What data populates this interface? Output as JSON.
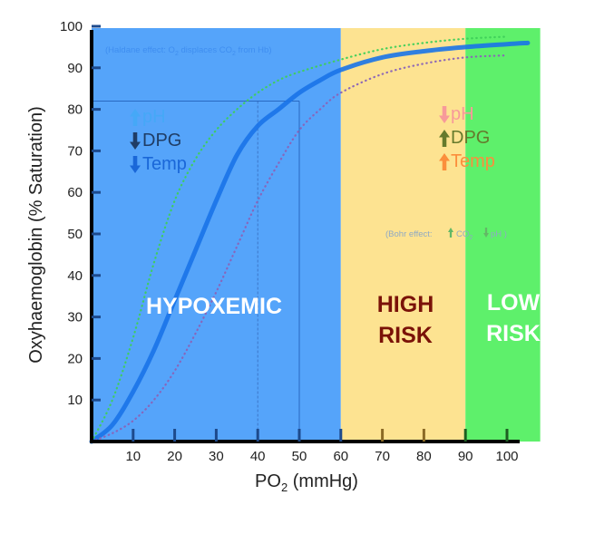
{
  "chart_data": {
    "type": "line",
    "xlabel": "PO",
    "xlabel_sub": "2",
    "xlabel_unit": "(mmHg)",
    "ylabel": "Oxyhaemoglobin (% Saturation)",
    "xlim": [
      0,
      108
    ],
    "ylim": [
      0,
      100
    ],
    "xticks": [
      10,
      20,
      30,
      40,
      50,
      60,
      70,
      80,
      90,
      100
    ],
    "yticks": [
      10,
      20,
      30,
      40,
      50,
      60,
      70,
      80,
      90,
      100
    ],
    "zones": [
      {
        "label_lines": [
          "HYPOXEMIC"
        ],
        "x_start": 0,
        "x_end": 60,
        "color": "#55a4fa",
        "label_color": "#ffffff"
      },
      {
        "label_lines": [
          "HIGH",
          "RISK"
        ],
        "x_start": 60,
        "x_end": 90,
        "color": "#fde391",
        "label_color": "#7a1208"
      },
      {
        "label_lines": [
          "LOW",
          "RISK"
        ],
        "x_start": 90,
        "x_end": 108,
        "color": "#5ef06b",
        "label_color": "#ffffff"
      }
    ],
    "series": [
      {
        "style": "solid",
        "color": "#1a73e8",
        "x": [
          0,
          5,
          10,
          15,
          20,
          25,
          30,
          35,
          40,
          45,
          50,
          55,
          60,
          70,
          80,
          90,
          100,
          105
        ],
        "values": [
          0,
          4,
          12,
          22,
          34,
          46,
          58,
          69,
          76,
          80,
          84,
          87,
          89.5,
          92.5,
          94,
          95,
          95.7,
          96
        ]
      },
      {
        "style": "dotted",
        "color": "#3ecf5a",
        "x": [
          0,
          5,
          10,
          15,
          20,
          25,
          30,
          35,
          40,
          45,
          50,
          60,
          70,
          80,
          90,
          100
        ],
        "values": [
          0,
          10,
          25,
          43,
          58,
          68,
          75,
          80,
          84,
          87,
          89,
          92,
          94.5,
          96,
          97,
          97.5
        ]
      },
      {
        "style": "dotted",
        "color": "#8a63b8",
        "x": [
          0,
          5,
          10,
          15,
          20,
          25,
          30,
          35,
          40,
          45,
          50,
          55,
          60,
          70,
          80,
          90,
          100
        ],
        "values": [
          0,
          2,
          5,
          10,
          17,
          26,
          36,
          47,
          58,
          67,
          75,
          80,
          84,
          88.5,
          91,
          92.5,
          93
        ]
      }
    ],
    "reference_lines": [
      {
        "style": "solid",
        "x": 50,
        "y": 82
      },
      {
        "style": "dashed",
        "x": 40,
        "y": 82
      }
    ],
    "factors_left": [
      {
        "arrow": "up",
        "text": "pH",
        "color": "#45a8f7"
      },
      {
        "arrow": "down",
        "text": "DPG",
        "color": "#1f3d66"
      },
      {
        "arrow": "down",
        "text": "Temp",
        "color": "#1a67d8"
      }
    ],
    "factors_right": [
      {
        "arrow": "down",
        "text": "pH",
        "color": "#f79a9a"
      },
      {
        "arrow": "up",
        "text": "DPG",
        "color": "#657a2c"
      },
      {
        "arrow": "up",
        "text": "Temp",
        "color": "#fb8e3c"
      }
    ],
    "haldane_note": {
      "pre": "(Haldane effect: O",
      "sub1": "2",
      "mid": " displaces CO",
      "sub2": "2",
      "post": " from Hb)"
    },
    "bohr_note": {
      "pre": "(Bohr effect:",
      "arrow1": "up",
      "mid": "CO",
      "sub": "2",
      "arrow2": "down",
      "post": "pH )"
    }
  }
}
